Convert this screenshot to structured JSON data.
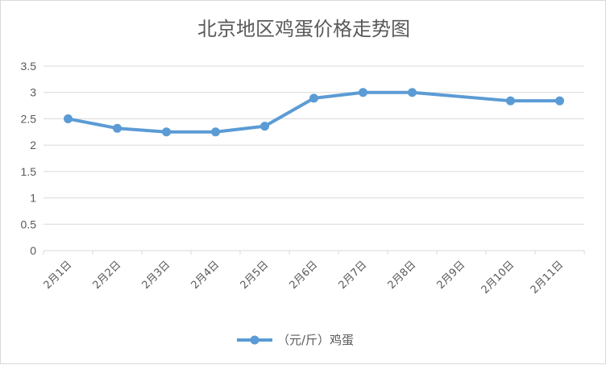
{
  "chart_data": {
    "type": "line",
    "title": "北京地区鸡蛋价格走势图",
    "categories": [
      "2月1日",
      "2月2日",
      "2月3日",
      "2月4日",
      "2月5日",
      "2月6日",
      "2月7日",
      "2月8日",
      "2月9日",
      "2月10日",
      "2月11日"
    ],
    "series": [
      {
        "name": "（元/斤）鸡蛋",
        "values": [
          2.5,
          2.32,
          2.25,
          2.25,
          2.36,
          2.89,
          3.0,
          3.0,
          null,
          2.84,
          2.84
        ],
        "positions": [
          0,
          1,
          2,
          3,
          4,
          5,
          6,
          7,
          9,
          10
        ]
      }
    ],
    "y_ticks": [
      "0",
      "0.5",
      "1",
      "1.5",
      "2",
      "2.5",
      "3",
      "3.5"
    ],
    "ylim": [
      0,
      3.5
    ],
    "grid": true,
    "legend_position": "bottom",
    "colors": {
      "series": "#5b9bd5",
      "grid": "#d9d9d9",
      "text": "#595959"
    }
  }
}
